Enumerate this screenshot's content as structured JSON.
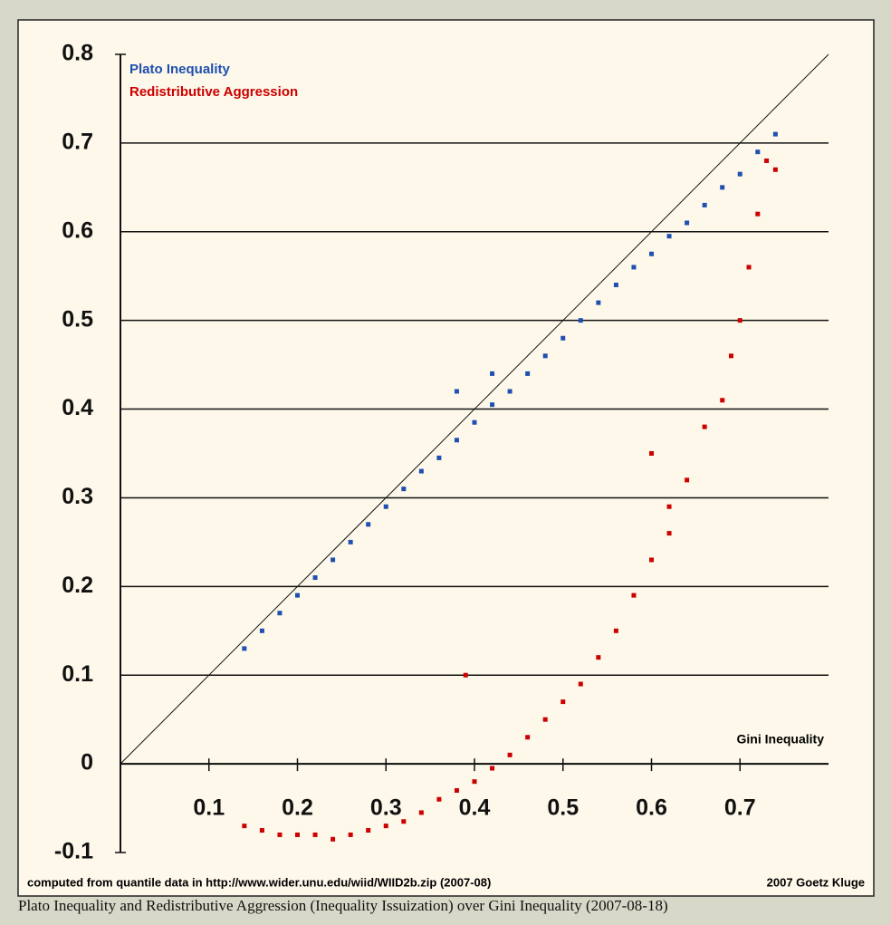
{
  "chart_data": {
    "type": "scatter",
    "x_label": "Gini Inequality",
    "footnote": "computed from quantile data in http://www.wider.unu.edu/wiid/WIID2b.zip (2007-08)",
    "credit": "2007 Goetz Kluge",
    "caption": "Plato Inequality and Redistributive Aggression (Inequality Issuization) over Gini Inequality (2007-08-18)",
    "xlim": [
      0,
      0.8
    ],
    "ylim": [
      -0.1,
      0.8
    ],
    "xticks": [
      0.1,
      0.2,
      0.3,
      0.4,
      0.5,
      0.6,
      0.7
    ],
    "yticks": [
      -0.1,
      0,
      0.1,
      0.2,
      0.3,
      0.4,
      0.5,
      0.6,
      0.7,
      0.8
    ],
    "grid": true,
    "series": [
      {
        "name": "Plato Inequality",
        "color": "#1f4fb0",
        "x": [
          0.14,
          0.16,
          0.18,
          0.2,
          0.22,
          0.24,
          0.26,
          0.28,
          0.3,
          0.32,
          0.34,
          0.36,
          0.38,
          0.4,
          0.42,
          0.44,
          0.46,
          0.48,
          0.5,
          0.52,
          0.54,
          0.56,
          0.58,
          0.6,
          0.62,
          0.64,
          0.66,
          0.68,
          0.7,
          0.72,
          0.74,
          0.38,
          0.42
        ],
        "values": [
          0.13,
          0.15,
          0.17,
          0.19,
          0.21,
          0.23,
          0.25,
          0.27,
          0.29,
          0.31,
          0.33,
          0.345,
          0.365,
          0.385,
          0.405,
          0.42,
          0.44,
          0.46,
          0.48,
          0.5,
          0.52,
          0.54,
          0.56,
          0.575,
          0.595,
          0.61,
          0.63,
          0.65,
          0.665,
          0.69,
          0.71,
          0.42,
          0.44
        ]
      },
      {
        "name": "Redistributive Aggression",
        "color": "#cc0000",
        "x": [
          0.14,
          0.16,
          0.18,
          0.2,
          0.22,
          0.24,
          0.26,
          0.28,
          0.3,
          0.32,
          0.34,
          0.36,
          0.38,
          0.4,
          0.42,
          0.44,
          0.46,
          0.48,
          0.5,
          0.52,
          0.54,
          0.56,
          0.58,
          0.6,
          0.62,
          0.62,
          0.64,
          0.66,
          0.68,
          0.69,
          0.7,
          0.71,
          0.72,
          0.73,
          0.74,
          0.39,
          0.6
        ],
        "values": [
          -0.07,
          -0.075,
          -0.08,
          -0.08,
          -0.08,
          -0.085,
          -0.08,
          -0.075,
          -0.07,
          -0.065,
          -0.055,
          -0.04,
          -0.03,
          -0.02,
          -0.005,
          0.01,
          0.03,
          0.05,
          0.07,
          0.09,
          0.12,
          0.15,
          0.19,
          0.23,
          0.26,
          0.29,
          0.32,
          0.38,
          0.41,
          0.46,
          0.5,
          0.56,
          0.62,
          0.68,
          0.67,
          0.1,
          0.35
        ]
      }
    ]
  }
}
